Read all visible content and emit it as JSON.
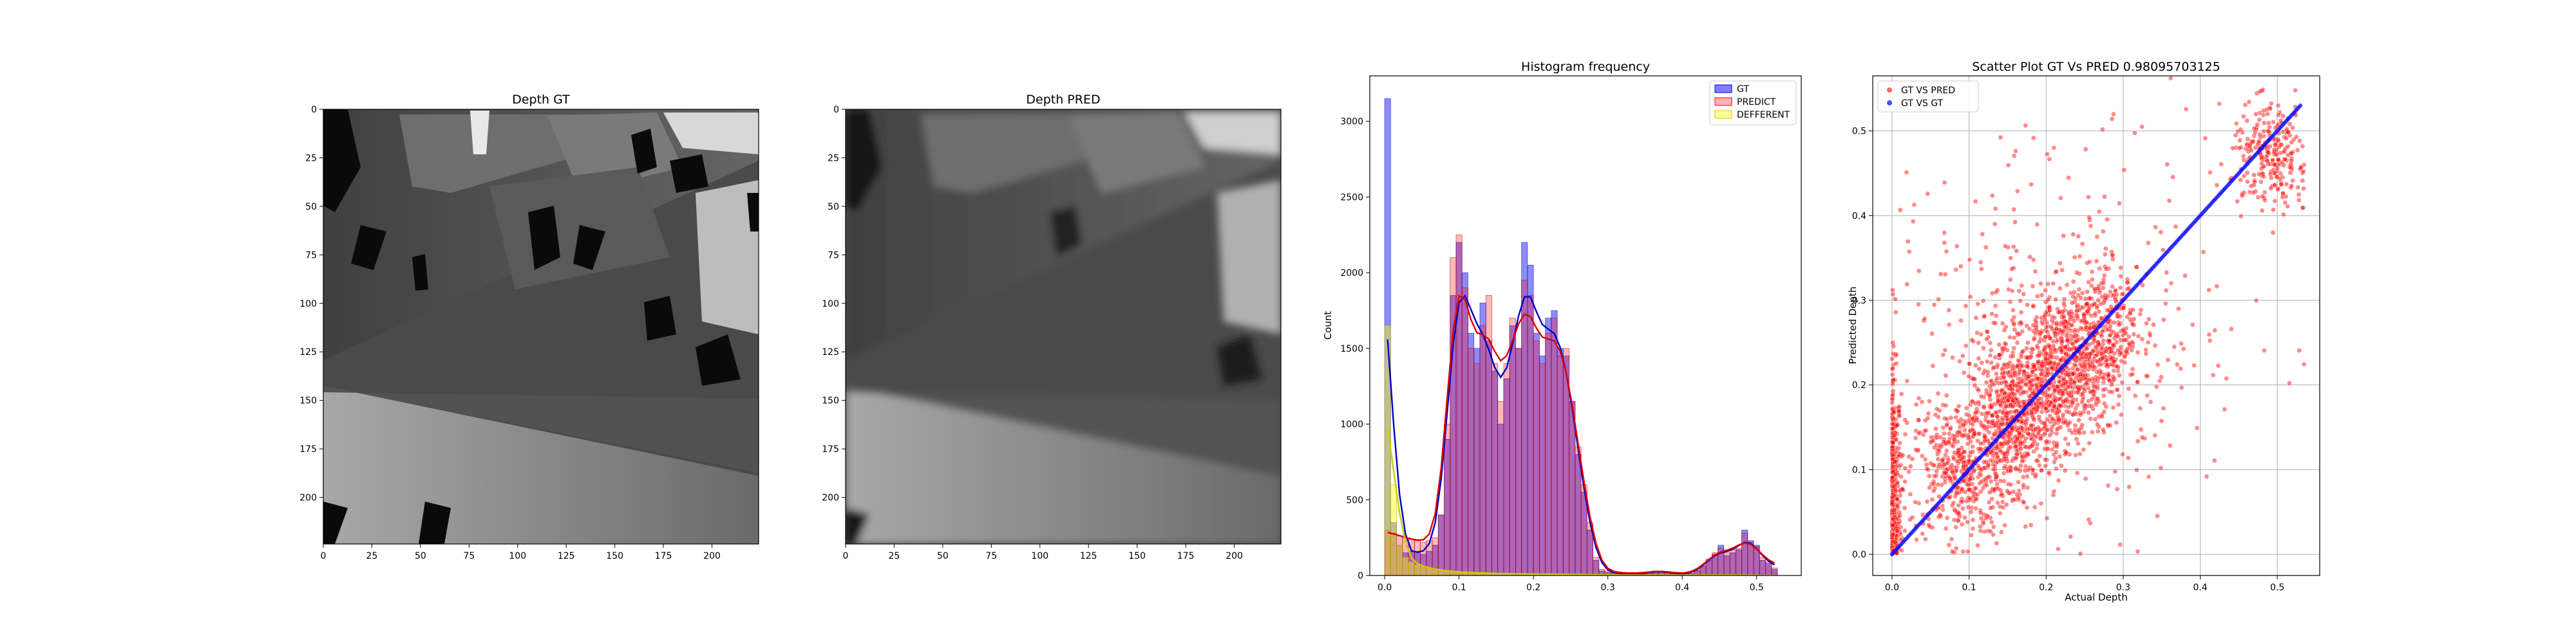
{
  "chart_data": [
    {
      "type": "heatmap",
      "title": "Depth GT",
      "xticks": [
        "0",
        "25",
        "50",
        "75",
        "100",
        "125",
        "150",
        "175",
        "200"
      ],
      "yticks": [
        "0",
        "25",
        "50",
        "75",
        "100",
        "125",
        "150",
        "175",
        "200"
      ],
      "xlim": [
        0,
        224
      ],
      "ylim": [
        0,
        224
      ],
      "colormap": "gray"
    },
    {
      "type": "heatmap",
      "title": "Depth PRED",
      "xticks": [
        "0",
        "25",
        "50",
        "75",
        "100",
        "125",
        "150",
        "175",
        "200"
      ],
      "yticks": [
        "0",
        "25",
        "50",
        "75",
        "100",
        "125",
        "150",
        "175",
        "200"
      ],
      "xlim": [
        0,
        224
      ],
      "ylim": [
        0,
        224
      ],
      "colormap": "gray"
    },
    {
      "type": "bar",
      "title": "Histogram frequency",
      "ylabel": "Count",
      "xlim": [
        -0.02,
        0.56
      ],
      "ylim": [
        0,
        3300
      ],
      "xticks": [
        "0.0",
        "0.1",
        "0.2",
        "0.3",
        "0.4",
        "0.5"
      ],
      "yticks": [
        "0",
        "500",
        "1000",
        "1500",
        "2000",
        "2500",
        "3000"
      ],
      "legend_position": "upper right",
      "bin_width": 0.008,
      "bin_starts": [
        0.0,
        0.008,
        0.016,
        0.024,
        0.032,
        0.04,
        0.048,
        0.056,
        0.064,
        0.072,
        0.08,
        0.088,
        0.096,
        0.104,
        0.112,
        0.12,
        0.128,
        0.136,
        0.144,
        0.152,
        0.16,
        0.168,
        0.176,
        0.184,
        0.192,
        0.2,
        0.208,
        0.216,
        0.224,
        0.232,
        0.24,
        0.248,
        0.256,
        0.264,
        0.272,
        0.28,
        0.288,
        0.296,
        0.304,
        0.312,
        0.32,
        0.328,
        0.336,
        0.344,
        0.352,
        0.36,
        0.368,
        0.376,
        0.384,
        0.392,
        0.4,
        0.408,
        0.416,
        0.424,
        0.432,
        0.44,
        0.448,
        0.456,
        0.464,
        0.472,
        0.48,
        0.488,
        0.496,
        0.504,
        0.512,
        0.52
      ],
      "series": [
        {
          "name": "GT",
          "color": "#0000ff",
          "values": [
            3150,
            350,
            200,
            150,
            160,
            150,
            140,
            160,
            200,
            400,
            900,
            1850,
            2200,
            2000,
            1600,
            1500,
            1800,
            1550,
            1350,
            1000,
            1300,
            1650,
            1500,
            2200,
            2050,
            1600,
            1450,
            1700,
            1750,
            1500,
            1450,
            1150,
            800,
            550,
            300,
            100,
            30,
            20,
            15,
            15,
            10,
            10,
            10,
            10,
            20,
            30,
            30,
            20,
            15,
            10,
            5,
            10,
            30,
            60,
            100,
            140,
            200,
            130,
            150,
            170,
            300,
            230,
            200,
            100,
            80,
            40
          ]
        },
        {
          "name": "PREDICT",
          "color": "#ff0000",
          "values": [
            300,
            280,
            260,
            250,
            240,
            230,
            220,
            230,
            250,
            400,
            1000,
            2100,
            2250,
            1900,
            1500,
            1400,
            1650,
            1850,
            1400,
            1150,
            1400,
            1700,
            1500,
            1950,
            1850,
            1550,
            1400,
            1600,
            1700,
            1450,
            1500,
            1150,
            850,
            600,
            350,
            120,
            40,
            30,
            20,
            20,
            15,
            15,
            15,
            15,
            25,
            30,
            30,
            25,
            20,
            15,
            10,
            15,
            35,
            65,
            110,
            150,
            180,
            150,
            170,
            180,
            280,
            220,
            190,
            120,
            90,
            50
          ]
        },
        {
          "name": "DEFFERENT",
          "color": "#ffff00",
          "values": [
            1650,
            600,
            200,
            120,
            90,
            70,
            60,
            50,
            40,
            35,
            30,
            25,
            25,
            20,
            20,
            18,
            16,
            15,
            14,
            13,
            12,
            12,
            10,
            10,
            10,
            9,
            9,
            8,
            8,
            8,
            7,
            7,
            6,
            6,
            5,
            5,
            5,
            4,
            4,
            4,
            3,
            3,
            3,
            3,
            3,
            2,
            2,
            2,
            2,
            2,
            2,
            2,
            2,
            2,
            2,
            2,
            2,
            2,
            2,
            2,
            2,
            1,
            1,
            1,
            1,
            1
          ]
        }
      ]
    },
    {
      "type": "scatter",
      "title": "Scatter Plot GT Vs PRED 0.98095703125",
      "xlabel": "Actual Depth",
      "ylabel": "Predicted Depth",
      "xlim": [
        -0.025,
        0.555
      ],
      "ylim": [
        -0.025,
        0.565
      ],
      "xticks": [
        "0.0",
        "0.1",
        "0.2",
        "0.3",
        "0.4",
        "0.5"
      ],
      "yticks": [
        "0.0",
        "0.1",
        "0.2",
        "0.3",
        "0.4",
        "0.5"
      ],
      "grid": true,
      "legend_position": "upper left",
      "series": [
        {
          "name": "GT VS PRED",
          "color": "#ff0000"
        },
        {
          "name": "GT VS GT",
          "color": "#0000ff",
          "x": [
            0.0,
            0.53
          ],
          "y": [
            0.0,
            0.53
          ]
        }
      ],
      "clusters": [
        {
          "cx": 0.0,
          "cy": 0.05,
          "sx": 0.006,
          "sy": 0.08,
          "n": 450
        },
        {
          "cx": 0.09,
          "cy": 0.1,
          "sx": 0.035,
          "sy": 0.04,
          "n": 450
        },
        {
          "cx": 0.16,
          "cy": 0.16,
          "sx": 0.03,
          "sy": 0.04,
          "n": 650
        },
        {
          "cx": 0.22,
          "cy": 0.22,
          "sx": 0.035,
          "sy": 0.04,
          "n": 650
        },
        {
          "cx": 0.27,
          "cy": 0.27,
          "sx": 0.025,
          "sy": 0.035,
          "n": 300
        },
        {
          "cx": 0.2,
          "cy": 0.23,
          "sx": 0.09,
          "sy": 0.1,
          "n": 300
        },
        {
          "cx": 0.49,
          "cy": 0.47,
          "sx": 0.025,
          "sy": 0.03,
          "n": 260
        },
        {
          "cx": 0.25,
          "cy": 0.3,
          "sx": 0.14,
          "sy": 0.13,
          "n": 160
        }
      ]
    }
  ]
}
